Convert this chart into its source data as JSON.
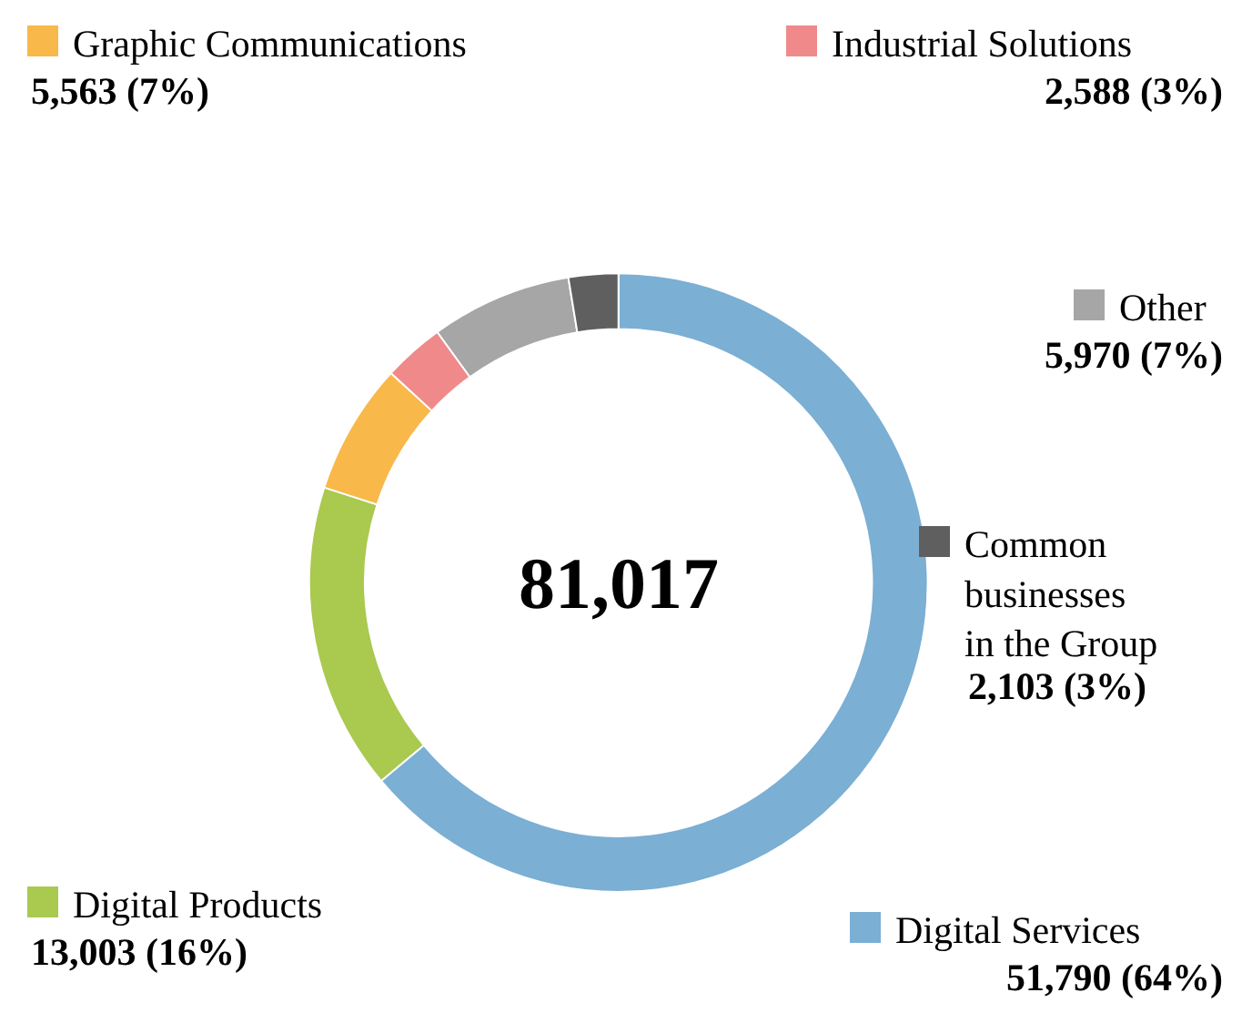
{
  "chart_data": {
    "type": "donut",
    "categories": [
      "Digital Services",
      "Digital Products",
      "Graphic Communications",
      "Industrial Solutions",
      "Other",
      "Common businesses in the Group"
    ],
    "values": [
      51790,
      13003,
      5563,
      2588,
      5970,
      2103
    ],
    "colors": [
      "#7bafd4",
      "#a9c94f",
      "#f9b84a",
      "#f08a8a",
      "#a6a6a6",
      "#5f5f5f"
    ],
    "value_labels": [
      "51,790 (64%)",
      "13,003 (16%)",
      "5,563 (7%)",
      "2,588 (3%)",
      "5,970 (7%)",
      "2,103 (3%)"
    ],
    "annotations": [
      "81,017"
    ],
    "legend": true
  }
}
